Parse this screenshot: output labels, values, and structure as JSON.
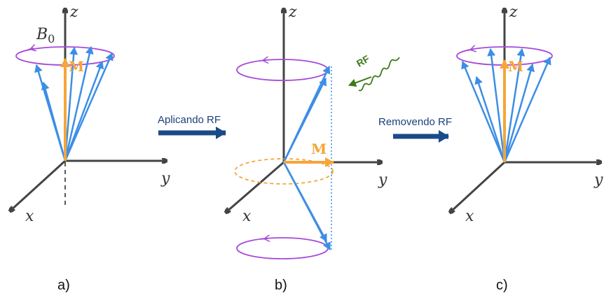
{
  "panels": [
    {
      "label": "a)",
      "axes": {
        "x": "x",
        "y": "y",
        "z": "z"
      },
      "field": {
        "symbol": "B",
        "subscript": "0"
      },
      "magnetization": "M"
    },
    {
      "label": "b)",
      "axes": {
        "x": "x",
        "y": "y",
        "z": "z"
      },
      "magnetization": "M",
      "rf": "RF"
    },
    {
      "label": "c)",
      "axes": {
        "x": "x",
        "y": "y",
        "z": "z"
      },
      "magnetization": "M"
    }
  ],
  "transitions": [
    "Aplicando RF",
    "Removendo RF"
  ]
}
